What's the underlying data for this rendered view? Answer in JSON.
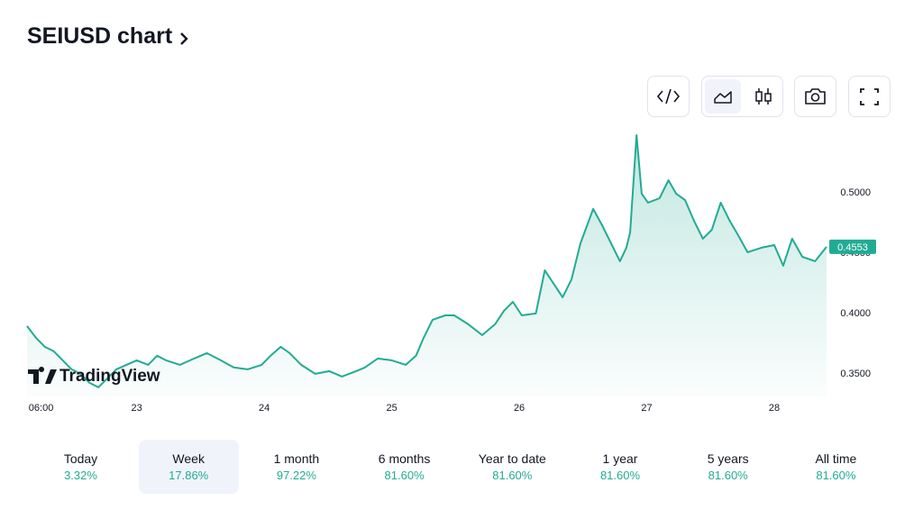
{
  "header": {
    "title": "SEIUSD chart"
  },
  "chart_data": {
    "type": "line",
    "color": "#22ab94",
    "grid": false,
    "watermark": "TradingView",
    "x": [
      22.14,
      22.21,
      22.28,
      22.35,
      22.42,
      22.49,
      22.56,
      22.63,
      22.7,
      22.77,
      22.84,
      22.92,
      23.0,
      23.09,
      23.16,
      23.23,
      23.34,
      23.45,
      23.55,
      23.66,
      23.76,
      23.87,
      23.98,
      24.05,
      24.13,
      24.2,
      24.29,
      24.4,
      24.51,
      24.61,
      24.72,
      24.79,
      24.89,
      25.0,
      25.11,
      25.19,
      25.25,
      25.32,
      25.42,
      25.49,
      25.6,
      25.71,
      25.81,
      25.88,
      25.95,
      26.02,
      26.13,
      26.2,
      26.27,
      26.34,
      26.41,
      26.48,
      26.58,
      26.65,
      26.72,
      26.79,
      26.84,
      26.87,
      26.92,
      26.96,
      27.01,
      27.1,
      27.17,
      27.23,
      27.3,
      27.37,
      27.44,
      27.51,
      27.58,
      27.65,
      27.72,
      27.79,
      27.9,
      28.0,
      28.07,
      28.14,
      28.22,
      28.32,
      28.41
    ],
    "values": [
      0.3896,
      0.3799,
      0.3724,
      0.3687,
      0.3612,
      0.3538,
      0.35,
      0.3426,
      0.3389,
      0.3463,
      0.3538,
      0.3575,
      0.3612,
      0.3575,
      0.365,
      0.3612,
      0.3575,
      0.3627,
      0.3672,
      0.3612,
      0.3553,
      0.3538,
      0.3575,
      0.365,
      0.3724,
      0.3672,
      0.3575,
      0.35,
      0.3523,
      0.3478,
      0.3523,
      0.3553,
      0.3627,
      0.3612,
      0.3575,
      0.365,
      0.3799,
      0.3948,
      0.3985,
      0.3985,
      0.3911,
      0.3821,
      0.3911,
      0.4023,
      0.4097,
      0.3985,
      0.4,
      0.4358,
      0.4247,
      0.4135,
      0.4284,
      0.4582,
      0.4866,
      0.4731,
      0.4582,
      0.4433,
      0.4545,
      0.4672,
      0.5477,
      0.4993,
      0.4918,
      0.4955,
      0.5104,
      0.4993,
      0.494,
      0.4769,
      0.462,
      0.4694,
      0.4918,
      0.4769,
      0.4642,
      0.4508,
      0.4545,
      0.4567,
      0.4396,
      0.462,
      0.447,
      0.4433,
      0.4553
    ],
    "xlim": [
      22.14,
      28.41
    ],
    "xticks": [
      {
        "value": 22.25,
        "label": "06:00"
      },
      23,
      24,
      25,
      26,
      27,
      28
    ],
    "ylim": [
      0.3313,
      0.5552
    ],
    "yticks": [
      {
        "value": 0.35,
        "label": "0.3500"
      },
      {
        "value": 0.4,
        "label": "0.4000"
      },
      {
        "value": 0.45,
        "label": "0.4500"
      },
      {
        "value": 0.5,
        "label": "0.5000"
      }
    ]
  },
  "periods": [
    {
      "label": "Today",
      "change": "3.32%"
    },
    {
      "label": "Week",
      "change": "17.86%"
    },
    {
      "label": "1 month",
      "change": "97.22%"
    },
    {
      "label": "6 months",
      "change": "81.60%"
    },
    {
      "label": "Year to date",
      "change": "81.60%"
    },
    {
      "label": "1 year",
      "change": "81.60%"
    },
    {
      "label": "5 years",
      "change": "81.60%"
    },
    {
      "label": "All time",
      "change": "81.60%"
    }
  ],
  "selected_period": 1
}
